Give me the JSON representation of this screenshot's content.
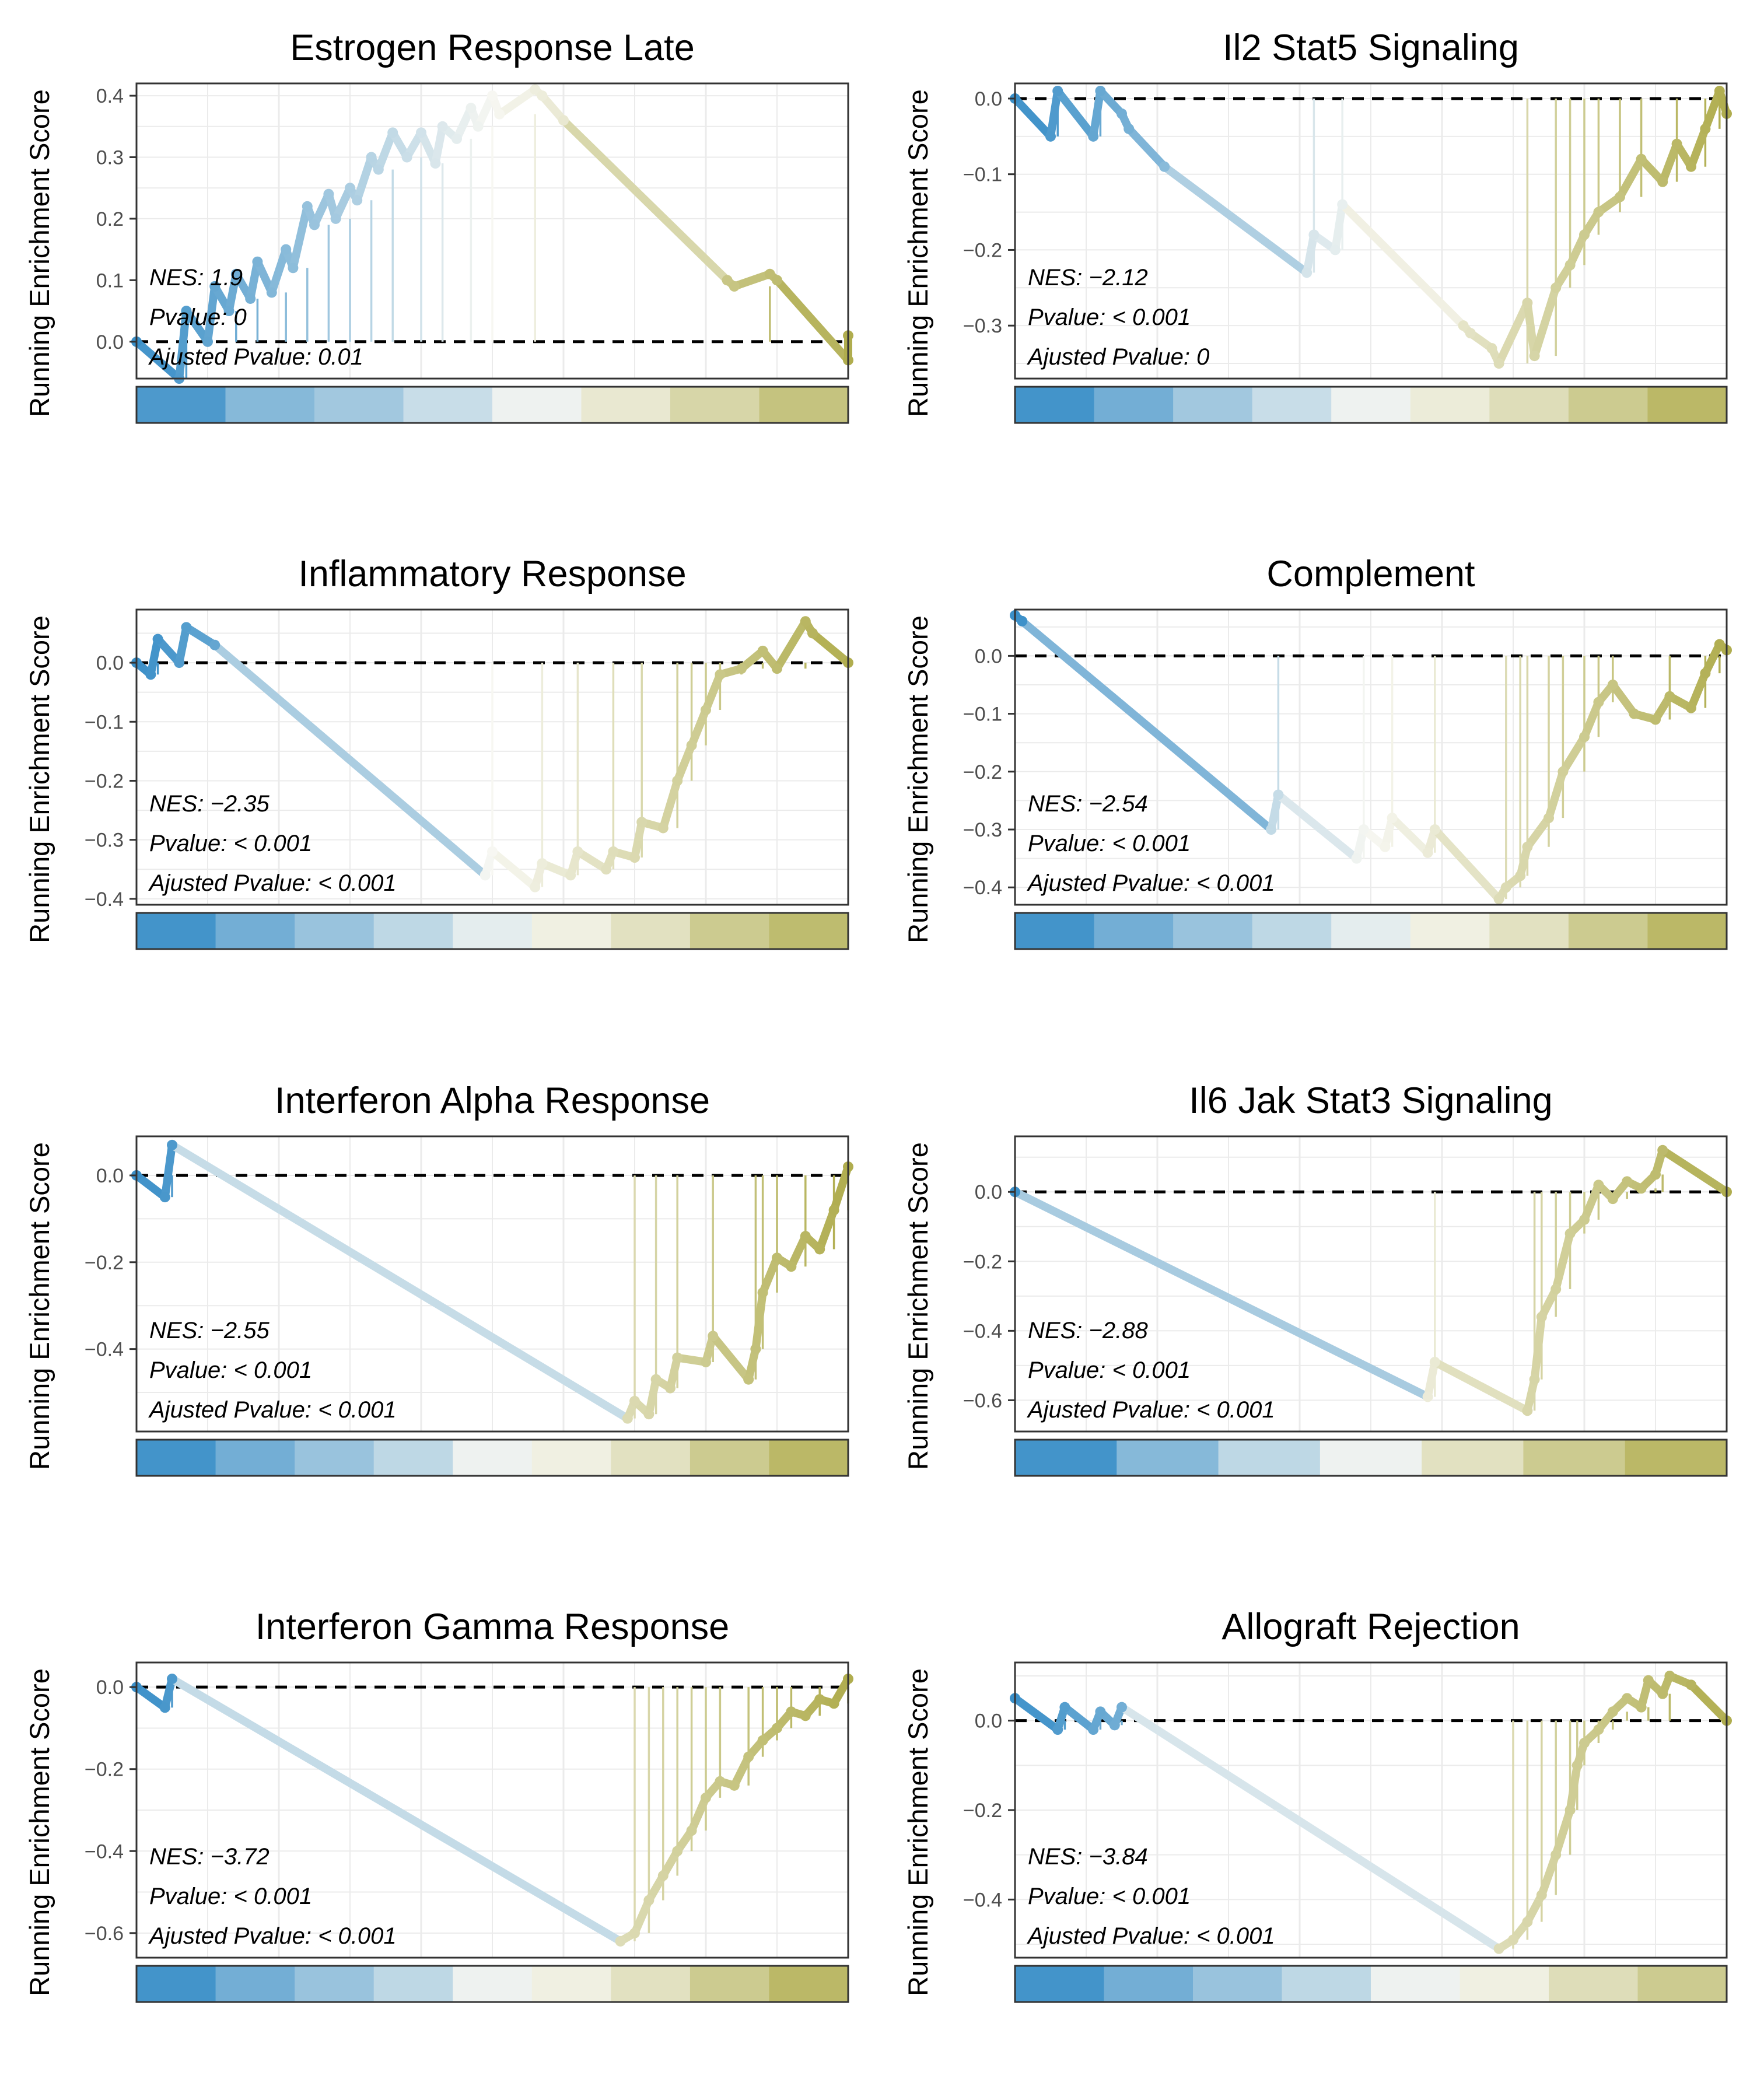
{
  "y_axis_label": "Running Enrichment Score",
  "stat_labels": {
    "nes": "NES: ",
    "pvalue": "Pvalue: ",
    "padj": "Ajusted Pvalue: "
  },
  "colors": {
    "blue": "#3a8fc8",
    "olive": "#b0ad4e",
    "mid": "#f7f7f2",
    "grid": "#ebebeb",
    "frame": "#333333"
  },
  "chart_data": [
    {
      "type": "line",
      "title": "Estrogen Response Late",
      "nes": "1.9",
      "pvalue": "0",
      "padj": "0.01",
      "ylim": [
        -0.06,
        0.42
      ],
      "yticks": [
        "0.0",
        "0.1",
        "0.2",
        "0.3",
        "0.4"
      ],
      "ytick_values": [
        0,
        0.1,
        0.2,
        0.3,
        0.4
      ],
      "x": [
        0,
        0.06,
        0.07,
        0.1,
        0.11,
        0.13,
        0.14,
        0.16,
        0.17,
        0.19,
        0.21,
        0.22,
        0.24,
        0.25,
        0.27,
        0.28,
        0.3,
        0.31,
        0.33,
        0.34,
        0.36,
        0.38,
        0.4,
        0.42,
        0.43,
        0.45,
        0.47,
        0.48,
        0.5,
        0.51,
        0.56,
        0.57,
        0.6,
        0.83,
        0.84,
        0.89,
        0.9,
        1.0,
        1.0
      ],
      "y": [
        0,
        -0.06,
        0.05,
        0.0,
        0.09,
        0.05,
        0.11,
        0.07,
        0.13,
        0.08,
        0.15,
        0.12,
        0.22,
        0.19,
        0.24,
        0.2,
        0.25,
        0.23,
        0.3,
        0.28,
        0.34,
        0.3,
        0.34,
        0.29,
        0.35,
        0.33,
        0.38,
        0.35,
        0.4,
        0.37,
        0.41,
        0.4,
        0.36,
        0.1,
        0.09,
        0.11,
        0.1,
        -0.03,
        0.01
      ],
      "heatmap": [
        0.9,
        0.6,
        0.45,
        0.25,
        0.05,
        -0.2,
        -0.45,
        -0.7
      ]
    },
    {
      "type": "line",
      "title": "Il2 Stat5 Signaling",
      "nes": "−2.12",
      "pvalue": "< 0.001",
      "padj": "0",
      "ylim": [
        -0.37,
        0.02
      ],
      "yticks": [
        "0.0",
        "−0.1",
        "−0.2",
        "−0.3"
      ],
      "ytick_values": [
        0,
        -0.1,
        -0.2,
        -0.3
      ],
      "x": [
        0,
        0.05,
        0.06,
        0.11,
        0.12,
        0.15,
        0.16,
        0.21,
        0.41,
        0.42,
        0.45,
        0.46,
        0.63,
        0.64,
        0.67,
        0.68,
        0.72,
        0.73,
        0.76,
        0.78,
        0.8,
        0.82,
        0.85,
        0.88,
        0.91,
        0.93,
        0.95,
        0.97,
        0.99,
        1.0
      ],
      "y": [
        0,
        -0.05,
        0.01,
        -0.05,
        0.01,
        -0.02,
        -0.04,
        -0.09,
        -0.23,
        -0.18,
        -0.2,
        -0.14,
        -0.3,
        -0.31,
        -0.33,
        -0.35,
        -0.27,
        -0.34,
        -0.25,
        -0.22,
        -0.18,
        -0.15,
        -0.13,
        -0.08,
        -0.11,
        -0.06,
        -0.09,
        -0.04,
        0.01,
        -0.02
      ],
      "heatmap": [
        0.95,
        0.7,
        0.45,
        0.25,
        0.05,
        -0.15,
        -0.35,
        -0.6,
        -0.85
      ]
    },
    {
      "type": "line",
      "title": "Inflammatory Response",
      "nes": "−2.35",
      "pvalue": "< 0.001",
      "padj": "< 0.001",
      "ylim": [
        -0.41,
        0.09
      ],
      "yticks": [
        "0.0",
        "−0.1",
        "−0.2",
        "−0.3",
        "−0.4"
      ],
      "ytick_values": [
        0,
        -0.1,
        -0.2,
        -0.3,
        -0.4
      ],
      "x": [
        0,
        0.02,
        0.03,
        0.06,
        0.07,
        0.11,
        0.49,
        0.5,
        0.56,
        0.57,
        0.61,
        0.62,
        0.66,
        0.67,
        0.7,
        0.71,
        0.74,
        0.76,
        0.78,
        0.8,
        0.82,
        0.85,
        0.88,
        0.9,
        0.94,
        0.95,
        1.0
      ],
      "y": [
        0,
        -0.02,
        0.04,
        0.0,
        0.06,
        0.03,
        -0.36,
        -0.32,
        -0.38,
        -0.34,
        -0.36,
        -0.32,
        -0.35,
        -0.32,
        -0.33,
        -0.27,
        -0.28,
        -0.2,
        -0.14,
        -0.08,
        -0.02,
        -0.01,
        0.02,
        -0.01,
        0.07,
        0.05,
        0.0
      ],
      "heatmap": [
        0.95,
        0.7,
        0.5,
        0.3,
        0.1,
        -0.1,
        -0.3,
        -0.6,
        -0.8
      ]
    },
    {
      "type": "line",
      "title": "Complement",
      "nes": "−2.54",
      "pvalue": "< 0.001",
      "padj": "< 0.001",
      "ylim": [
        -0.43,
        0.08
      ],
      "yticks": [
        "0.0",
        "−0.1",
        "−0.2",
        "−0.3",
        "−0.4"
      ],
      "ytick_values": [
        0,
        -0.1,
        -0.2,
        -0.3,
        -0.4
      ],
      "x": [
        0,
        0.01,
        0.36,
        0.37,
        0.48,
        0.49,
        0.52,
        0.53,
        0.58,
        0.59,
        0.68,
        0.69,
        0.71,
        0.72,
        0.75,
        0.77,
        0.8,
        0.82,
        0.84,
        0.87,
        0.9,
        0.92,
        0.95,
        0.97,
        0.99,
        1.0
      ],
      "y": [
        0.07,
        0.06,
        -0.3,
        -0.24,
        -0.35,
        -0.3,
        -0.33,
        -0.28,
        -0.34,
        -0.3,
        -0.42,
        -0.4,
        -0.38,
        -0.33,
        -0.28,
        -0.2,
        -0.14,
        -0.08,
        -0.05,
        -0.1,
        -0.11,
        -0.07,
        -0.09,
        -0.03,
        0.02,
        0.01
      ],
      "heatmap": [
        0.95,
        0.7,
        0.5,
        0.3,
        0.1,
        -0.1,
        -0.3,
        -0.6,
        -0.85
      ]
    },
    {
      "type": "line",
      "title": "Interferon Alpha Response",
      "nes": "−2.55",
      "pvalue": "< 0.001",
      "padj": "< 0.001",
      "ylim": [
        -0.59,
        0.09
      ],
      "yticks": [
        "0.0",
        "−0.2",
        "−0.4"
      ],
      "ytick_values": [
        0,
        -0.2,
        -0.4
      ],
      "x": [
        0,
        0.04,
        0.05,
        0.69,
        0.7,
        0.72,
        0.73,
        0.75,
        0.76,
        0.8,
        0.81,
        0.86,
        0.87,
        0.88,
        0.9,
        0.92,
        0.94,
        0.96,
        0.98,
        1.0
      ],
      "y": [
        0,
        -0.05,
        0.07,
        -0.56,
        -0.52,
        -0.55,
        -0.47,
        -0.49,
        -0.42,
        -0.43,
        -0.37,
        -0.47,
        -0.4,
        -0.27,
        -0.19,
        -0.21,
        -0.14,
        -0.17,
        -0.08,
        0.02
      ],
      "heatmap": [
        0.95,
        0.7,
        0.5,
        0.3,
        0.05,
        -0.1,
        -0.3,
        -0.6,
        -0.85
      ]
    },
    {
      "type": "line",
      "title": "Il6 Jak Stat3 Signaling",
      "nes": "−2.88",
      "pvalue": "< 0.001",
      "padj": "< 0.001",
      "ylim": [
        -0.69,
        0.16
      ],
      "yticks": [
        "0.0",
        "−0.2",
        "−0.4",
        "−0.6"
      ],
      "ytick_values": [
        0,
        -0.2,
        -0.4,
        -0.6
      ],
      "x": [
        0,
        0.58,
        0.59,
        0.72,
        0.73,
        0.74,
        0.76,
        0.78,
        0.8,
        0.82,
        0.84,
        0.86,
        0.88,
        0.9,
        0.91,
        1.0
      ],
      "y": [
        0,
        -0.59,
        -0.49,
        -0.63,
        -0.54,
        -0.36,
        -0.28,
        -0.12,
        -0.08,
        0.02,
        -0.02,
        0.03,
        0.01,
        0.05,
        0.12,
        0.0
      ],
      "heatmap": [
        0.95,
        0.6,
        0.3,
        0.05,
        -0.3,
        -0.6,
        -0.85
      ]
    },
    {
      "type": "line",
      "title": "Interferon Gamma Response",
      "nes": "−3.72",
      "pvalue": "< 0.001",
      "padj": "< 0.001",
      "ylim": [
        -0.66,
        0.06
      ],
      "yticks": [
        "0.0",
        "−0.2",
        "−0.4",
        "−0.6"
      ],
      "ytick_values": [
        0,
        -0.2,
        -0.4,
        -0.6
      ],
      "x": [
        0,
        0.04,
        0.05,
        0.68,
        0.7,
        0.72,
        0.74,
        0.76,
        0.78,
        0.8,
        0.82,
        0.84,
        0.86,
        0.88,
        0.9,
        0.92,
        0.94,
        0.96,
        0.98,
        1.0
      ],
      "y": [
        0,
        -0.05,
        0.02,
        -0.62,
        -0.6,
        -0.52,
        -0.46,
        -0.4,
        -0.35,
        -0.27,
        -0.23,
        -0.24,
        -0.17,
        -0.13,
        -0.1,
        -0.06,
        -0.07,
        -0.03,
        -0.04,
        0.02
      ],
      "heatmap": [
        0.95,
        0.7,
        0.5,
        0.3,
        0.05,
        -0.1,
        -0.3,
        -0.6,
        -0.85
      ]
    },
    {
      "type": "line",
      "title": "Allograft Rejection",
      "nes": "−3.84",
      "pvalue": "< 0.001",
      "padj": "< 0.001",
      "ylim": [
        -0.53,
        0.13
      ],
      "yticks": [
        "0.0",
        "−0.2",
        "−0.4"
      ],
      "ytick_values": [
        0,
        -0.2,
        -0.4
      ],
      "x": [
        0,
        0.06,
        0.07,
        0.11,
        0.12,
        0.14,
        0.15,
        0.68,
        0.7,
        0.72,
        0.74,
        0.76,
        0.78,
        0.79,
        0.8,
        0.82,
        0.84,
        0.86,
        0.88,
        0.89,
        0.91,
        0.92,
        0.95,
        1.0
      ],
      "y": [
        0.05,
        -0.02,
        0.03,
        -0.02,
        0.02,
        -0.01,
        0.03,
        -0.51,
        -0.49,
        -0.45,
        -0.39,
        -0.3,
        -0.2,
        -0.1,
        -0.05,
        -0.02,
        0.02,
        0.05,
        0.03,
        0.09,
        0.06,
        0.1,
        0.08,
        0.0
      ],
      "heatmap": [
        0.95,
        0.7,
        0.5,
        0.3,
        0.05,
        -0.1,
        -0.35,
        -0.6
      ]
    }
  ]
}
